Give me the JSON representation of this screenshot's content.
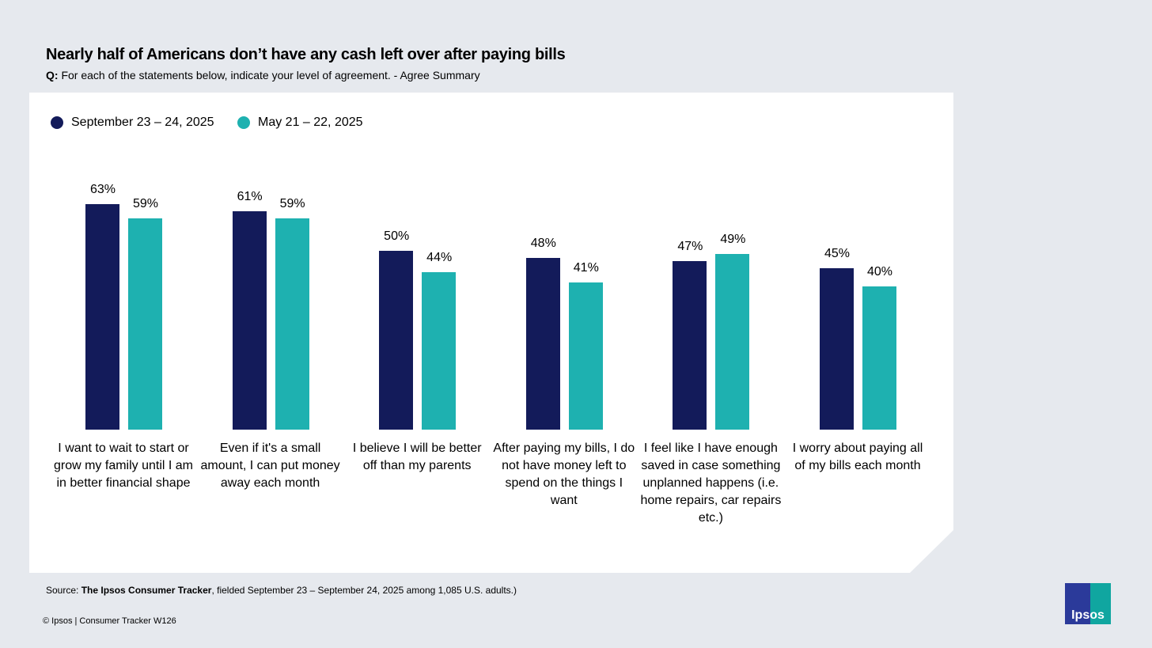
{
  "title": "Nearly half of Americans don’t have any cash left over after paying bills",
  "subtitle_prefix": "Q:",
  "subtitle": "For each of the statements below, indicate your level of agreement. - Agree Summary",
  "source_prefix": "Source:",
  "source_bold": "The Ipsos Consumer Tracker",
  "source_rest": ", fielded September 23 – September 24, 2025 among 1,085 U.S. adults.)",
  "copyright": "© Ipsos | Consumer Tracker W126",
  "logo": "Ipsos",
  "chart_data": {
    "type": "bar",
    "title": "Nearly half of Americans don’t have any cash left over after paying bills",
    "ylim": [
      0,
      70
    ],
    "legend_position": "top-left",
    "categories": [
      "I want to wait to start or grow my family until I am in better financial shape",
      "Even if it's a small amount, I can put money away each month",
      "I believe I will be better off than my parents",
      "After paying my bills, I do not have money left to spend on the things I want",
      "I feel like I have enough saved in case something unplanned happens (i.e. home repairs, car repairs etc.)",
      "I worry about paying all of my bills each month"
    ],
    "series": [
      {
        "name": "September 23 – 24, 2025",
        "color": "#131b5a",
        "values": [
          63,
          61,
          50,
          48,
          47,
          45
        ]
      },
      {
        "name": "May 21 – 22, 2025",
        "color": "#1eb1b0",
        "values": [
          59,
          59,
          44,
          41,
          49,
          40
        ]
      }
    ]
  }
}
